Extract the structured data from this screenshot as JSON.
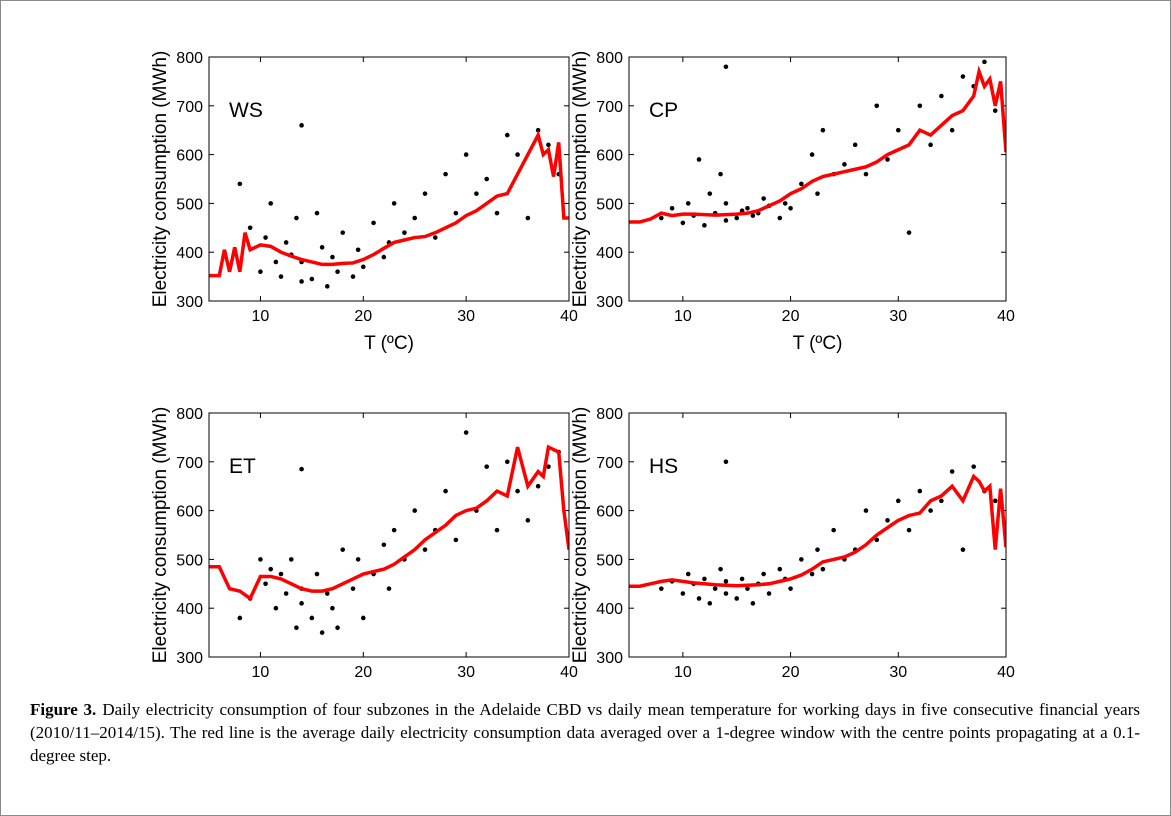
{
  "chart_data": [
    {
      "type": "scatter",
      "annotation": "WS",
      "xlabel": "T (ºC)",
      "ylabel": "Electricity consumption (MWh)",
      "xlim": [
        5,
        40
      ],
      "ylim": [
        300,
        800
      ],
      "xticks": [
        10,
        20,
        30,
        40
      ],
      "yticks": [
        300,
        400,
        500,
        600,
        700,
        800
      ],
      "points": {
        "color": "#000000",
        "x": [
          8,
          9,
          10,
          10.5,
          11,
          11.5,
          12,
          12.5,
          13,
          13.5,
          14,
          14,
          15,
          15.5,
          16,
          16.5,
          17,
          17.5,
          18,
          19,
          19.5,
          20,
          21,
          22,
          22.5,
          23,
          24,
          25,
          26,
          27,
          28,
          29,
          30,
          31,
          32,
          33,
          34,
          35,
          36,
          37,
          38,
          39,
          14
        ],
        "y": [
          540,
          450,
          360,
          430,
          500,
          380,
          350,
          420,
          395,
          470,
          340,
          380,
          345,
          480,
          410,
          330,
          390,
          360,
          440,
          350,
          405,
          370,
          460,
          390,
          420,
          500,
          440,
          470,
          520,
          430,
          560,
          480,
          600,
          520,
          550,
          480,
          640,
          600,
          470,
          650,
          620,
          560,
          660
        ]
      },
      "line": {
        "color": "#ff0000",
        "x": [
          5,
          6,
          6.5,
          7,
          7.5,
          8,
          8.5,
          9,
          10,
          11,
          12,
          13,
          14,
          15,
          16,
          17,
          18,
          19,
          20,
          21,
          22,
          23,
          24,
          25,
          26,
          27,
          28,
          29,
          30,
          31,
          32,
          33,
          34,
          35,
          36,
          37,
          37.5,
          38,
          38.5,
          39,
          39.5,
          40
        ],
        "y": [
          352,
          352,
          405,
          360,
          410,
          360,
          440,
          405,
          415,
          412,
          400,
          392,
          385,
          380,
          375,
          375,
          377,
          378,
          385,
          395,
          408,
          420,
          425,
          430,
          432,
          440,
          450,
          460,
          475,
          485,
          500,
          515,
          520,
          560,
          600,
          640,
          600,
          610,
          555,
          625,
          470,
          470
        ]
      }
    },
    {
      "type": "scatter",
      "annotation": "CP",
      "xlabel": "T (ºC)",
      "ylabel": "Electricity consumption (MWh)",
      "xlim": [
        5,
        40
      ],
      "ylim": [
        300,
        800
      ],
      "xticks": [
        10,
        20,
        30,
        40
      ],
      "yticks": [
        300,
        400,
        500,
        600,
        700,
        800
      ],
      "points": {
        "color": "#000000",
        "x": [
          8,
          9,
          10,
          10.5,
          11,
          11.5,
          12,
          12.5,
          13,
          13.5,
          14,
          14,
          15,
          15.5,
          16,
          16.5,
          17,
          17.5,
          18,
          19,
          19.5,
          20,
          21,
          22,
          22.5,
          23,
          24,
          25,
          26,
          27,
          28,
          29,
          30,
          31,
          32,
          33,
          34,
          35,
          36,
          37,
          38,
          39,
          14
        ],
        "y": [
          470,
          490,
          460,
          500,
          475,
          590,
          455,
          520,
          480,
          560,
          465,
          500,
          470,
          485,
          490,
          475,
          480,
          510,
          495,
          470,
          500,
          490,
          540,
          600,
          520,
          650,
          560,
          580,
          620,
          560,
          700,
          590,
          650,
          440,
          700,
          620,
          720,
          650,
          760,
          740,
          790,
          690,
          780
        ]
      },
      "line": {
        "color": "#ff0000",
        "x": [
          5,
          6,
          7,
          8,
          9,
          10,
          11,
          12,
          13,
          14,
          15,
          16,
          17,
          18,
          19,
          20,
          21,
          22,
          23,
          24,
          25,
          26,
          27,
          28,
          29,
          30,
          31,
          32,
          33,
          34,
          35,
          36,
          37,
          37.5,
          38,
          38.5,
          39,
          39.5,
          40
        ],
        "y": [
          462,
          462,
          468,
          480,
          475,
          478,
          478,
          477,
          476,
          477,
          478,
          480,
          485,
          495,
          505,
          520,
          530,
          545,
          555,
          560,
          565,
          570,
          575,
          585,
          600,
          610,
          620,
          650,
          640,
          660,
          680,
          690,
          720,
          770,
          740,
          755,
          700,
          750,
          605
        ]
      }
    },
    {
      "type": "scatter",
      "annotation": "ET",
      "xlabel": "T (ºC)",
      "ylabel": "Electricity consumption (MWh)",
      "xlim": [
        5,
        40
      ],
      "ylim": [
        300,
        800
      ],
      "xticks": [
        10,
        20,
        30,
        40
      ],
      "yticks": [
        300,
        400,
        500,
        600,
        700,
        800
      ],
      "points": {
        "color": "#000000",
        "x": [
          8,
          9,
          10,
          10.5,
          11,
          11.5,
          12,
          12.5,
          13,
          13.5,
          14,
          14,
          15,
          15.5,
          16,
          16.5,
          17,
          17.5,
          18,
          19,
          19.5,
          20,
          21,
          22,
          22.5,
          23,
          24,
          25,
          26,
          27,
          28,
          29,
          30,
          31,
          32,
          33,
          34,
          35,
          36,
          37,
          38,
          39,
          14
        ],
        "y": [
          380,
          420,
          500,
          450,
          480,
          400,
          470,
          430,
          500,
          360,
          440,
          410,
          380,
          470,
          350,
          430,
          400,
          360,
          520,
          440,
          500,
          380,
          470,
          530,
          440,
          560,
          500,
          600,
          520,
          560,
          640,
          540,
          760,
          600,
          690,
          560,
          700,
          640,
          580,
          650,
          690,
          720,
          685
        ]
      },
      "line": {
        "color": "#ff0000",
        "x": [
          5,
          6,
          7,
          8,
          9,
          10,
          11,
          12,
          13,
          14,
          15,
          16,
          17,
          18,
          19,
          20,
          21,
          22,
          23,
          24,
          25,
          26,
          27,
          28,
          29,
          30,
          31,
          32,
          33,
          34,
          35,
          36,
          37,
          37.5,
          38,
          38.5,
          39,
          39.5,
          40
        ],
        "y": [
          485,
          485,
          440,
          435,
          420,
          465,
          465,
          460,
          450,
          440,
          435,
          435,
          440,
          450,
          460,
          470,
          475,
          480,
          490,
          505,
          520,
          540,
          555,
          570,
          590,
          600,
          605,
          620,
          640,
          630,
          730,
          650,
          680,
          670,
          730,
          725,
          720,
          600,
          520
        ]
      }
    },
    {
      "type": "scatter",
      "annotation": "HS",
      "xlabel": "T (ºC)",
      "ylabel": "Electricity consumption (MWh)",
      "xlim": [
        5,
        40
      ],
      "ylim": [
        300,
        800
      ],
      "xticks": [
        10,
        20,
        30,
        40
      ],
      "yticks": [
        300,
        400,
        500,
        600,
        700,
        800
      ],
      "points": {
        "color": "#000000",
        "x": [
          8,
          9,
          10,
          10.5,
          11,
          11.5,
          12,
          12.5,
          13,
          13.5,
          14,
          14,
          15,
          15.5,
          16,
          16.5,
          17,
          17.5,
          18,
          19,
          19.5,
          20,
          21,
          22,
          22.5,
          23,
          24,
          25,
          26,
          27,
          28,
          29,
          30,
          31,
          32,
          33,
          34,
          35,
          36,
          37,
          38,
          39,
          14
        ],
        "y": [
          440,
          455,
          430,
          470,
          450,
          420,
          460,
          410,
          440,
          480,
          430,
          455,
          420,
          460,
          440,
          410,
          450,
          470,
          430,
          480,
          460,
          440,
          500,
          470,
          520,
          480,
          560,
          500,
          520,
          600,
          540,
          580,
          620,
          560,
          640,
          600,
          620,
          680,
          520,
          690,
          640,
          620,
          700
        ]
      },
      "line": {
        "color": "#ff0000",
        "x": [
          5,
          6,
          7,
          8,
          9,
          10,
          11,
          12,
          13,
          14,
          15,
          16,
          17,
          18,
          19,
          20,
          21,
          22,
          23,
          24,
          25,
          26,
          27,
          28,
          29,
          30,
          31,
          32,
          33,
          34,
          35,
          36,
          37,
          37.5,
          38,
          38.5,
          39,
          39.5,
          40
        ],
        "y": [
          445,
          445,
          450,
          455,
          458,
          455,
          452,
          450,
          448,
          447,
          446,
          447,
          448,
          450,
          455,
          460,
          468,
          480,
          495,
          500,
          505,
          515,
          530,
          550,
          565,
          580,
          590,
          595,
          620,
          630,
          650,
          620,
          670,
          660,
          640,
          650,
          520,
          645,
          525
        ]
      }
    }
  ],
  "caption": {
    "label": "Figure 3.",
    "text": "Daily electricity consumption of four subzones in the Adelaide CBD vs daily mean temperature for working days in five consecutive financial years (2010/11–2014/15). The red line is the average daily electricity consumption data averaged over a 1-degree window with the centre points propagating at a 0.1-degree step."
  }
}
